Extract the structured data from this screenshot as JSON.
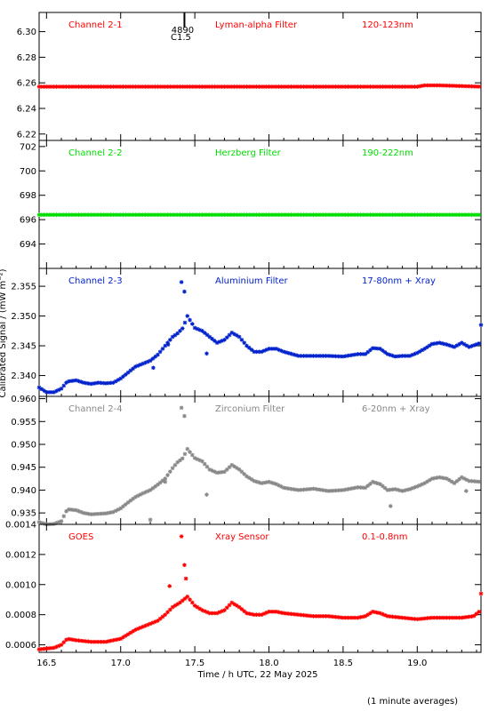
{
  "footer_note": "(1 minute averages)",
  "xlabel": "Time / h UTC, 22 May 2025",
  "ylabel": "Calibrated Signal / (mW m⁻²)",
  "flare_marker": {
    "x": 17.43,
    "label_top": "4890",
    "label_bottom": "C1.5"
  },
  "chart_data": {
    "type": "scatter",
    "x_range": [
      16.45,
      19.43
    ],
    "x_ticks": [
      16.5,
      17.0,
      17.5,
      18.0,
      18.5,
      19.0
    ],
    "x_tick_labels": [
      "16.5",
      "17.0",
      "17.5",
      "18.0",
      "18.5",
      "19.0"
    ],
    "x_step_minutes": 1,
    "panels": [
      {
        "name": "Channel 2-1",
        "filter": "Lyman-alpha Filter",
        "band": "120-123nm",
        "color": "#ff0000",
        "ylim": [
          6.215,
          6.315
        ],
        "yticks": [
          "6.22",
          "6.24",
          "6.26",
          "6.28",
          "6.30"
        ],
        "y_points": [
          [
            16.45,
            6.257
          ],
          [
            19.0,
            6.257
          ],
          [
            19.05,
            6.258
          ],
          [
            19.15,
            6.258
          ],
          [
            19.43,
            6.257
          ]
        ]
      },
      {
        "name": "Channel 2-2",
        "filter": "Herzberg Filter",
        "band": "190-222nm",
        "color": "#00dd00",
        "ylim": [
          692.0,
          702.5
        ],
        "yticks": [
          "694",
          "696",
          "698",
          "700",
          "702"
        ],
        "y_points": [
          [
            16.45,
            696.4
          ],
          [
            19.43,
            696.4
          ]
        ]
      },
      {
        "name": "Channel 2-3",
        "filter": "Aluminium Filter",
        "band": "17-80nm + Xray",
        "color": "#0022cc",
        "ylim": [
          2.3365,
          2.358
        ],
        "yticks": [
          "2.340",
          "2.345",
          "2.350",
          "2.355"
        ],
        "y_points": [
          [
            16.45,
            2.338
          ],
          [
            16.5,
            2.3372
          ],
          [
            16.55,
            2.3372
          ],
          [
            16.6,
            2.3378
          ],
          [
            16.64,
            2.339
          ],
          [
            16.7,
            2.3392
          ],
          [
            16.75,
            2.3388
          ],
          [
            16.8,
            2.3386
          ],
          [
            16.85,
            2.3388
          ],
          [
            16.9,
            2.3387
          ],
          [
            16.95,
            2.3388
          ],
          [
            17.0,
            2.3395
          ],
          [
            17.05,
            2.3405
          ],
          [
            17.1,
            2.3415
          ],
          [
            17.15,
            2.342
          ],
          [
            17.2,
            2.3425
          ],
          [
            17.25,
            2.3435
          ],
          [
            17.3,
            2.345
          ],
          [
            17.35,
            2.3465
          ],
          [
            17.38,
            2.347
          ],
          [
            17.42,
            2.348
          ],
          [
            17.45,
            2.35
          ],
          [
            17.5,
            2.348
          ],
          [
            17.55,
            2.3475
          ],
          [
            17.6,
            2.3465
          ],
          [
            17.65,
            2.3455
          ],
          [
            17.7,
            2.346
          ],
          [
            17.75,
            2.3472
          ],
          [
            17.8,
            2.3465
          ],
          [
            17.85,
            2.345
          ],
          [
            17.9,
            2.344
          ],
          [
            17.95,
            2.344
          ],
          [
            18.0,
            2.3445
          ],
          [
            18.05,
            2.3445
          ],
          [
            18.1,
            2.344
          ],
          [
            18.2,
            2.3433
          ],
          [
            18.3,
            2.3433
          ],
          [
            18.4,
            2.3433
          ],
          [
            18.5,
            2.3432
          ],
          [
            18.6,
            2.3436
          ],
          [
            18.65,
            2.3436
          ],
          [
            18.7,
            2.3446
          ],
          [
            18.75,
            2.3445
          ],
          [
            18.8,
            2.3436
          ],
          [
            18.85,
            2.3432
          ],
          [
            18.9,
            2.3433
          ],
          [
            18.95,
            2.3433
          ],
          [
            19.0,
            2.3438
          ],
          [
            19.05,
            2.3445
          ],
          [
            19.1,
            2.3453
          ],
          [
            19.15,
            2.3455
          ],
          [
            19.2,
            2.3452
          ],
          [
            19.25,
            2.3448
          ],
          [
            19.3,
            2.3455
          ],
          [
            19.35,
            2.3448
          ],
          [
            19.43,
            2.3455
          ]
        ],
        "outliers": [
          [
            17.22,
            2.3413
          ],
          [
            17.32,
            2.3452
          ],
          [
            17.41,
            2.3557
          ],
          [
            17.43,
            2.3541
          ],
          [
            17.58,
            2.3437
          ],
          [
            19.43,
            2.3485
          ]
        ]
      },
      {
        "name": "Channel 2-4",
        "filter": "Zirconium Filter",
        "band": "6-20nm + Xray",
        "color": "#888888",
        "ylim": [
          0.9325,
          0.9605
        ],
        "yticks": [
          "0.935",
          "0.940",
          "0.945",
          "0.950",
          "0.955",
          "0.960"
        ],
        "y_points": [
          [
            16.45,
            0.933
          ],
          [
            16.5,
            0.9325
          ],
          [
            16.55,
            0.9326
          ],
          [
            16.6,
            0.9332
          ],
          [
            16.64,
            0.9358
          ],
          [
            16.7,
            0.9356
          ],
          [
            16.75,
            0.935
          ],
          [
            16.8,
            0.9347
          ],
          [
            16.85,
            0.9348
          ],
          [
            16.9,
            0.9349
          ],
          [
            16.95,
            0.9352
          ],
          [
            17.0,
            0.936
          ],
          [
            17.05,
            0.9373
          ],
          [
            17.1,
            0.9385
          ],
          [
            17.15,
            0.9393
          ],
          [
            17.2,
            0.94
          ],
          [
            17.25,
            0.9412
          ],
          [
            17.3,
            0.9425
          ],
          [
            17.35,
            0.9448
          ],
          [
            17.38,
            0.946
          ],
          [
            17.42,
            0.947
          ],
          [
            17.45,
            0.949
          ],
          [
            17.5,
            0.947
          ],
          [
            17.55,
            0.9463
          ],
          [
            17.6,
            0.9445
          ],
          [
            17.65,
            0.9438
          ],
          [
            17.7,
            0.944
          ],
          [
            17.75,
            0.9455
          ],
          [
            17.8,
            0.9445
          ],
          [
            17.85,
            0.943
          ],
          [
            17.9,
            0.942
          ],
          [
            17.95,
            0.9415
          ],
          [
            18.0,
            0.9418
          ],
          [
            18.05,
            0.9413
          ],
          [
            18.1,
            0.9405
          ],
          [
            18.2,
            0.94
          ],
          [
            18.3,
            0.9403
          ],
          [
            18.4,
            0.9398
          ],
          [
            18.5,
            0.94
          ],
          [
            18.55,
            0.9403
          ],
          [
            18.6,
            0.9406
          ],
          [
            18.65,
            0.9405
          ],
          [
            18.7,
            0.9418
          ],
          [
            18.75,
            0.9413
          ],
          [
            18.8,
            0.94
          ],
          [
            18.85,
            0.9402
          ],
          [
            18.9,
            0.9398
          ],
          [
            18.95,
            0.9402
          ],
          [
            19.0,
            0.9408
          ],
          [
            19.05,
            0.9415
          ],
          [
            19.1,
            0.9425
          ],
          [
            19.15,
            0.9428
          ],
          [
            19.2,
            0.9425
          ],
          [
            19.25,
            0.9415
          ],
          [
            19.3,
            0.9428
          ],
          [
            19.35,
            0.942
          ],
          [
            19.43,
            0.9418
          ]
        ],
        "outliers": [
          [
            17.2,
            0.9335
          ],
          [
            17.3,
            0.9418
          ],
          [
            17.41,
            0.958
          ],
          [
            17.43,
            0.9562
          ],
          [
            17.58,
            0.939
          ],
          [
            18.82,
            0.9365
          ],
          [
            19.33,
            0.9398
          ]
        ]
      },
      {
        "name": "GOES",
        "filter": "Xray Sensor",
        "band": "0.1-0.8nm",
        "color": "#ff0000",
        "ylim": [
          0.00055,
          0.0014
        ],
        "yticks": [
          "0.0006",
          "0.0008",
          "0.0010",
          "0.0012",
          "0.0014"
        ],
        "y_points": [
          [
            16.45,
            0.00057
          ],
          [
            16.55,
            0.00058
          ],
          [
            16.6,
            0.0006
          ],
          [
            16.64,
            0.00064
          ],
          [
            16.7,
            0.00063
          ],
          [
            16.8,
            0.00062
          ],
          [
            16.9,
            0.00062
          ],
          [
            17.0,
            0.00064
          ],
          [
            17.05,
            0.00067
          ],
          [
            17.1,
            0.0007
          ],
          [
            17.15,
            0.00072
          ],
          [
            17.2,
            0.00074
          ],
          [
            17.25,
            0.00076
          ],
          [
            17.3,
            0.0008
          ],
          [
            17.35,
            0.00085
          ],
          [
            17.4,
            0.00088
          ],
          [
            17.45,
            0.00092
          ],
          [
            17.5,
            0.00086
          ],
          [
            17.55,
            0.00083
          ],
          [
            17.6,
            0.00081
          ],
          [
            17.65,
            0.00081
          ],
          [
            17.7,
            0.00083
          ],
          [
            17.75,
            0.00088
          ],
          [
            17.8,
            0.00085
          ],
          [
            17.85,
            0.00081
          ],
          [
            17.9,
            0.0008
          ],
          [
            17.95,
            0.0008
          ],
          [
            18.0,
            0.00082
          ],
          [
            18.05,
            0.00082
          ],
          [
            18.1,
            0.00081
          ],
          [
            18.2,
            0.0008
          ],
          [
            18.3,
            0.00079
          ],
          [
            18.4,
            0.00079
          ],
          [
            18.5,
            0.00078
          ],
          [
            18.6,
            0.00078
          ],
          [
            18.65,
            0.00079
          ],
          [
            18.7,
            0.00082
          ],
          [
            18.75,
            0.00081
          ],
          [
            18.8,
            0.00079
          ],
          [
            18.9,
            0.00078
          ],
          [
            19.0,
            0.00077
          ],
          [
            19.1,
            0.00078
          ],
          [
            19.2,
            0.00078
          ],
          [
            19.3,
            0.00078
          ],
          [
            19.38,
            0.00079
          ],
          [
            19.43,
            0.00083
          ]
        ],
        "outliers": [
          [
            17.33,
            0.00099
          ],
          [
            17.41,
            0.00132
          ],
          [
            17.43,
            0.00113
          ],
          [
            17.44,
            0.00104
          ],
          [
            19.43,
            0.00094
          ]
        ]
      }
    ]
  }
}
